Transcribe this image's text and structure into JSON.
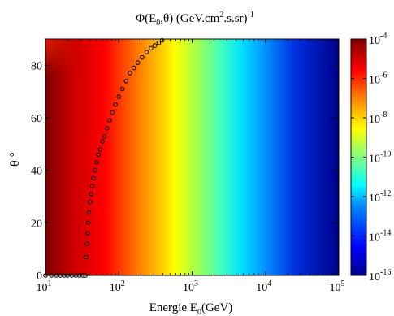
{
  "chart_data": {
    "type": "heatmap",
    "title_main": "Φ(E",
    "title_sub": "0",
    "title_mid": ",θ) (GeV.cm",
    "title_sup2": "2",
    "title_end": ".s.sr)",
    "title_sup_end": "-1",
    "xlabel_main": "Energie E",
    "xlabel_sub": "0",
    "xlabel_end": "(GeV)",
    "ylabel": "θ °",
    "x_scale": "log",
    "xlim": [
      10,
      100000
    ],
    "ylim": [
      0,
      90
    ],
    "x_ticks": [
      {
        "value": 10,
        "base": "10",
        "exp": "1"
      },
      {
        "value": 100,
        "base": "10",
        "exp": "2"
      },
      {
        "value": 1000,
        "base": "10",
        "exp": "3"
      },
      {
        "value": 10000,
        "base": "10",
        "exp": "4"
      },
      {
        "value": 100000,
        "base": "10",
        "exp": "5"
      }
    ],
    "y_ticks": [
      "0",
      "20",
      "40",
      "60",
      "80"
    ],
    "y_tick_values": [
      0,
      20,
      40,
      60,
      80
    ],
    "colorbar": {
      "scale": "log",
      "range": [
        1e-16,
        0.0001
      ],
      "ticks": [
        {
          "value": -4,
          "base": "10",
          "exp": "-4"
        },
        {
          "value": -6,
          "base": "10",
          "exp": "-6"
        },
        {
          "value": -8,
          "base": "10",
          "exp": "-8"
        },
        {
          "value": -10,
          "base": "10",
          "exp": "-10"
        },
        {
          "value": -12,
          "base": "10",
          "exp": "-12"
        },
        {
          "value": -14,
          "base": "10",
          "exp": "-14"
        },
        {
          "value": -16,
          "base": "10",
          "exp": "-16"
        }
      ],
      "colormap": "jet"
    },
    "grid": false,
    "series": [
      {
        "marker": "open-circle",
        "color": "#000000",
        "points": [
          [
            10,
            0
          ],
          [
            12,
            0
          ],
          [
            14,
            0
          ],
          [
            16,
            0
          ],
          [
            18,
            0
          ],
          [
            20,
            0
          ],
          [
            23,
            0
          ],
          [
            26,
            0
          ],
          [
            29,
            0
          ],
          [
            32,
            0
          ],
          [
            35,
            0
          ],
          [
            36,
            7
          ],
          [
            37,
            12
          ],
          [
            37.6,
            16
          ],
          [
            38.4,
            20
          ],
          [
            39.3,
            24
          ],
          [
            40.5,
            28
          ],
          [
            41.9,
            31
          ],
          [
            43.5,
            34
          ],
          [
            45.3,
            37
          ],
          [
            47.5,
            40
          ],
          [
            50,
            43
          ],
          [
            53,
            46
          ],
          [
            56,
            48
          ],
          [
            60,
            51
          ],
          [
            64,
            53
          ],
          [
            69,
            56
          ],
          [
            75,
            59
          ],
          [
            82,
            62
          ],
          [
            90,
            65
          ],
          [
            100,
            68
          ],
          [
            112,
            71
          ],
          [
            126,
            74
          ],
          [
            142,
            77
          ],
          [
            160,
            79
          ],
          [
            182,
            81
          ],
          [
            208,
            83
          ],
          [
            240,
            85
          ],
          [
            275,
            86.5
          ],
          [
            310,
            87.5
          ],
          [
            350,
            88.5
          ],
          [
            390,
            89.5
          ]
        ]
      }
    ]
  }
}
